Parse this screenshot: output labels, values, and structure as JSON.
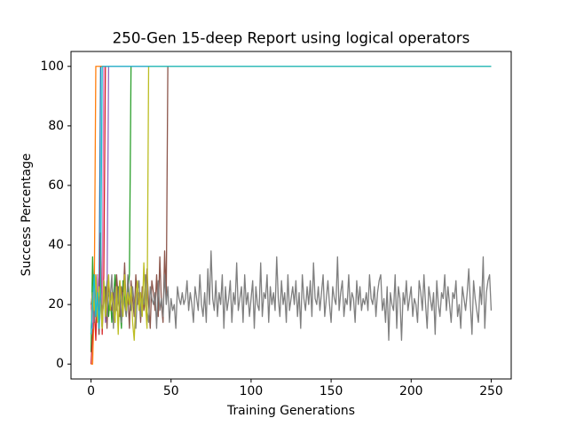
{
  "chart_data": {
    "type": "line",
    "title": "250-Gen 15-deep Report using logical operators",
    "x_label": "Training Generations",
    "y_label": "Success Percentage",
    "xlim": [
      -12.5,
      262.5
    ],
    "ylim": [
      -5,
      105
    ],
    "xticks": [
      0,
      50,
      100,
      150,
      200,
      250
    ],
    "yticks": [
      0,
      20,
      40,
      60,
      80,
      100
    ],
    "grid": false,
    "x": [
      0,
      1,
      2,
      3,
      4,
      5,
      6,
      7,
      8,
      9,
      10,
      11,
      12,
      13,
      14,
      15,
      16,
      17,
      18,
      19,
      20,
      21,
      22,
      23,
      24,
      25,
      26,
      27,
      28,
      29,
      30,
      31,
      32,
      33,
      34,
      35,
      36,
      37,
      38,
      39,
      40,
      41,
      42,
      43,
      44,
      45,
      46,
      47,
      48,
      49,
      50,
      51,
      52,
      53,
      54,
      55,
      56,
      57,
      58,
      59,
      60,
      61,
      62,
      63,
      64,
      65,
      66,
      67,
      68,
      69,
      70,
      71,
      72,
      73,
      74,
      75,
      76,
      77,
      78,
      79,
      80,
      81,
      82,
      83,
      84,
      85,
      86,
      87,
      88,
      89,
      90,
      91,
      92,
      93,
      94,
      95,
      96,
      97,
      98,
      99,
      100,
      101,
      102,
      103,
      104,
      105,
      106,
      107,
      108,
      109,
      110,
      111,
      112,
      113,
      114,
      115,
      116,
      117,
      118,
      119,
      120,
      121,
      122,
      123,
      124,
      125,
      126,
      127,
      128,
      129,
      130,
      131,
      132,
      133,
      134,
      135,
      136,
      137,
      138,
      139,
      140,
      141,
      142,
      143,
      144,
      145,
      146,
      147,
      148,
      149,
      150,
      151,
      152,
      153,
      154,
      155,
      156,
      157,
      158,
      159,
      160,
      161,
      162,
      163,
      164,
      165,
      166,
      167,
      168,
      169,
      170,
      171,
      172,
      173,
      174,
      175,
      176,
      177,
      178,
      179,
      180,
      181,
      182,
      183,
      184,
      185,
      186,
      187,
      188,
      189,
      190,
      191,
      192,
      193,
      194,
      195,
      196,
      197,
      198,
      199,
      200,
      201,
      202,
      203,
      204,
      205,
      206,
      207,
      208,
      209,
      210,
      211,
      212,
      213,
      214,
      215,
      216,
      217,
      218,
      219,
      220,
      221,
      222,
      223,
      224,
      225,
      226,
      227,
      228,
      229,
      230,
      231,
      232,
      233,
      234,
      235,
      236,
      237,
      238,
      239,
      240,
      241,
      242,
      243,
      244,
      245,
      246,
      247,
      248,
      249,
      250
    ],
    "series": [
      {
        "color": "#1f77b4",
        "x": [
          0,
          1,
          2,
          3,
          4,
          5,
          6,
          7,
          250
        ],
        "values": [
          10,
          22,
          30,
          16,
          26,
          20,
          100,
          100,
          100
        ]
      },
      {
        "color": "#ff7f0e",
        "x": [
          0,
          1,
          2,
          3,
          4,
          250
        ],
        "values": [
          0,
          0,
          20,
          100,
          100,
          100
        ]
      },
      {
        "color": "#2ca02c",
        "x": [
          0,
          1,
          2,
          3,
          4,
          5,
          6,
          7,
          8,
          9,
          10,
          11,
          12,
          13,
          14,
          15,
          16,
          17,
          18,
          19,
          20,
          21,
          22,
          23,
          24,
          25,
          250
        ],
        "values": [
          4,
          36,
          14,
          24,
          30,
          18,
          22,
          12,
          26,
          20,
          28,
          16,
          24,
          14,
          22,
          30,
          18,
          26,
          20,
          12,
          28,
          22,
          16,
          24,
          30,
          100,
          100
        ]
      },
      {
        "color": "#d62728",
        "x": [
          0,
          1,
          2,
          3,
          4,
          5,
          6,
          7,
          8,
          9,
          10,
          250
        ],
        "values": [
          0,
          10,
          20,
          8,
          26,
          14,
          44,
          10,
          30,
          100,
          100,
          100
        ]
      },
      {
        "color": "#9467bd",
        "x": [
          0,
          1,
          2,
          3,
          4,
          5,
          6,
          7,
          8,
          9,
          10,
          11,
          12,
          250
        ],
        "values": [
          20,
          12,
          26,
          16,
          30,
          10,
          24,
          18,
          28,
          14,
          22,
          100,
          100,
          100
        ]
      },
      {
        "color": "#8c564b",
        "x": [
          0,
          1,
          2,
          3,
          4,
          5,
          6,
          7,
          8,
          9,
          10,
          11,
          12,
          13,
          14,
          15,
          16,
          17,
          18,
          19,
          20,
          21,
          22,
          23,
          24,
          25,
          26,
          27,
          28,
          29,
          30,
          31,
          32,
          33,
          34,
          35,
          36,
          37,
          38,
          39,
          40,
          41,
          42,
          43,
          44,
          45,
          46,
          47,
          48,
          250
        ],
        "values": [
          20,
          14,
          28,
          18,
          24,
          10,
          30,
          16,
          22,
          26,
          12,
          28,
          20,
          18,
          24,
          14,
          30,
          22,
          16,
          26,
          20,
          34,
          18,
          24,
          12,
          28,
          22,
          16,
          30,
          20,
          24,
          14,
          26,
          18,
          22,
          32,
          20,
          12,
          28,
          24,
          18,
          30,
          16,
          36,
          20,
          14,
          38,
          22,
          100,
          100
        ]
      },
      {
        "color": "#e377c2",
        "x": [
          0,
          1,
          2,
          3,
          4,
          5,
          6,
          7,
          8,
          9,
          10,
          250
        ],
        "values": [
          20,
          14,
          26,
          18,
          30,
          12,
          24,
          20,
          100,
          100,
          100,
          100
        ]
      },
      {
        "color": "#7f7f7f",
        "values": [
          20,
          24,
          14,
          30,
          22,
          18,
          26,
          12,
          28,
          20,
          16,
          24,
          22,
          30,
          12,
          26,
          18,
          22,
          28,
          14,
          24,
          20,
          16,
          30,
          22,
          18,
          26,
          20,
          12,
          24,
          28,
          16,
          22,
          20,
          30,
          18,
          14,
          26,
          22,
          20,
          24,
          12,
          28,
          18,
          22,
          16,
          30,
          20,
          26,
          14,
          22,
          18,
          20,
          12,
          26,
          22,
          20,
          24,
          20,
          22,
          28,
          18,
          24,
          20,
          14,
          26,
          22,
          18,
          30,
          20,
          16,
          24,
          14,
          32,
          20,
          38,
          22,
          18,
          28,
          16,
          24,
          20,
          30,
          12,
          26,
          18,
          22,
          28,
          14,
          24,
          20,
          34,
          18,
          22,
          26,
          14,
          30,
          20,
          24,
          16,
          22,
          28,
          12,
          26,
          20,
          18,
          34,
          16,
          24,
          22,
          30,
          14,
          26,
          20,
          24,
          18,
          36,
          22,
          16,
          28,
          20,
          24,
          14,
          30,
          18,
          22,
          26,
          20,
          28,
          16,
          24,
          12,
          30,
          22,
          18,
          26,
          20,
          28,
          16,
          34,
          22,
          20,
          26,
          18,
          24,
          30,
          16,
          22,
          28,
          20,
          14,
          26,
          22,
          20,
          36,
          18,
          24,
          28,
          16,
          22,
          20,
          30,
          18,
          24,
          22,
          14,
          28,
          20,
          26,
          18,
          22,
          20,
          24,
          18,
          30,
          22,
          20,
          26,
          16,
          24,
          28,
          30,
          18,
          22,
          14,
          26,
          8,
          24,
          20,
          18,
          30,
          12,
          26,
          22,
          8,
          24,
          20,
          28,
          18,
          22,
          26,
          16,
          22,
          20,
          14,
          28,
          24,
          18,
          30,
          20,
          12,
          26,
          22,
          18,
          24,
          10,
          28,
          20,
          16,
          24,
          22,
          30,
          18,
          26,
          20,
          14,
          24,
          22,
          28,
          16,
          20,
          12,
          26,
          22,
          18,
          24,
          32,
          20,
          10,
          28,
          22,
          18,
          14,
          26,
          20,
          36,
          12,
          24,
          28,
          30,
          18
        ]
      },
      {
        "color": "#bcbd22",
        "x": [
          0,
          1,
          2,
          3,
          4,
          5,
          6,
          7,
          8,
          9,
          10,
          11,
          12,
          13,
          14,
          15,
          16,
          17,
          18,
          19,
          20,
          21,
          22,
          23,
          24,
          25,
          26,
          27,
          28,
          29,
          30,
          31,
          32,
          33,
          34,
          35,
          36,
          250
        ],
        "values": [
          10,
          24,
          18,
          30,
          14,
          26,
          20,
          12,
          28,
          16,
          22,
          30,
          18,
          24,
          20,
          14,
          26,
          10,
          28,
          22,
          16,
          30,
          18,
          24,
          20,
          26,
          14,
          8,
          22,
          28,
          18,
          24,
          16,
          34,
          20,
          12,
          100,
          100
        ]
      },
      {
        "color": "#17becf",
        "x": [
          0,
          1,
          2,
          3,
          4,
          5,
          6,
          7,
          8,
          9,
          250
        ],
        "values": [
          10,
          20,
          30,
          16,
          24,
          12,
          26,
          100,
          100,
          100,
          100
        ]
      }
    ]
  }
}
